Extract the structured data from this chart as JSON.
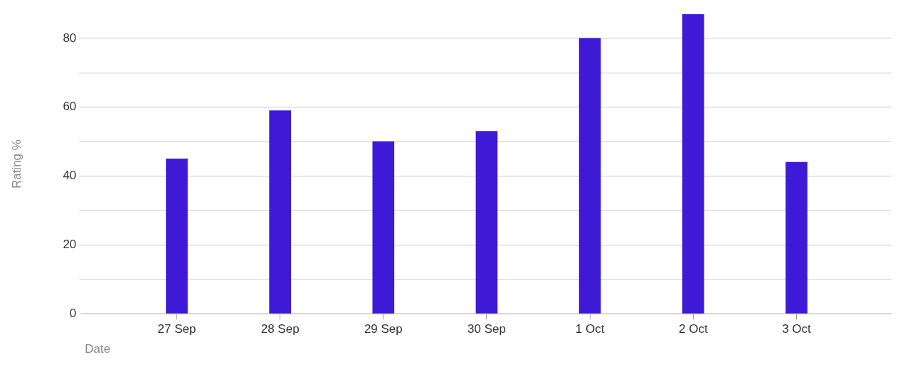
{
  "chart_data": {
    "type": "bar",
    "xlabel": "Date",
    "ylabel": "Rating %",
    "categories": [
      "27 Sep",
      "28 Sep",
      "29 Sep",
      "30 Sep",
      "1 Oct",
      "2 Oct",
      "3 Oct"
    ],
    "values": [
      45,
      59,
      50,
      53,
      80,
      87,
      44
    ],
    "color": "#3f1ad6",
    "ylim": [
      0,
      87
    ],
    "yticks": [
      0,
      {
        "value": 10,
        "label": null
      },
      20,
      {
        "value": 30,
        "label": null
      },
      40,
      {
        "value": 50,
        "label": null
      },
      60,
      {
        "value": 70,
        "label": null
      },
      80
    ],
    "grid": "y",
    "legend": false
  }
}
